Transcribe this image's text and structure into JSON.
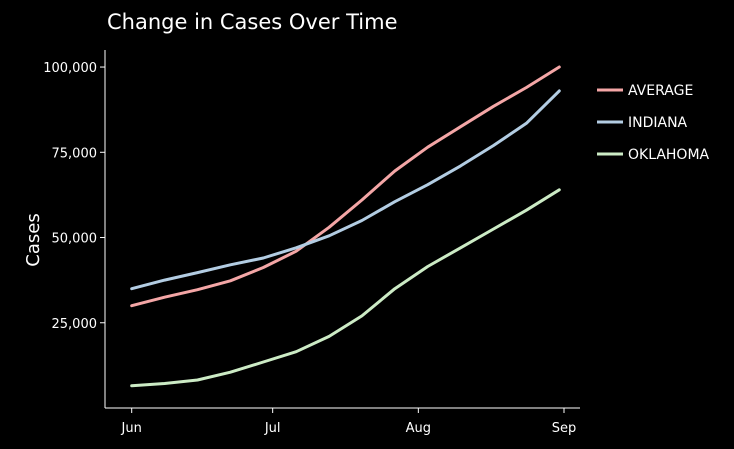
{
  "chart_data": {
    "type": "line",
    "title": "Change in Cases Over Time",
    "xlabel": "",
    "ylabel": "Cases",
    "x_axis": {
      "type": "date",
      "range": [
        "2020-05-31",
        "2020-09-01"
      ],
      "ticks": [
        {
          "date": "2020-06-01",
          "label": "Jun"
        },
        {
          "date": "2020-07-01",
          "label": "Jul"
        },
        {
          "date": "2020-08-01",
          "label": "Aug"
        },
        {
          "date": "2020-09-01",
          "label": "Sep"
        }
      ]
    },
    "y_axis": {
      "range": [
        0,
        105000
      ],
      "ticks": [
        {
          "value": 25000,
          "label": "25,000"
        },
        {
          "value": 50000,
          "label": "50,000"
        },
        {
          "value": 75000,
          "label": "75,000"
        },
        {
          "value": 100000,
          "label": "100,000"
        }
      ]
    },
    "grid": false,
    "legend": "top-right",
    "series": [
      {
        "name": "AVERAGE",
        "color": "#f4a6a6",
        "points": [
          [
            "2020-06-01",
            30000
          ],
          [
            "2020-06-08",
            32500
          ],
          [
            "2020-06-15",
            34700
          ],
          [
            "2020-06-22",
            37300
          ],
          [
            "2020-06-29",
            41200
          ],
          [
            "2020-07-06",
            46000
          ],
          [
            "2020-07-13",
            53000
          ],
          [
            "2020-07-20",
            61000
          ],
          [
            "2020-07-27",
            69500
          ],
          [
            "2020-08-03",
            76500
          ],
          [
            "2020-08-10",
            82500
          ],
          [
            "2020-08-17",
            88500
          ],
          [
            "2020-08-24",
            94000
          ],
          [
            "2020-08-31",
            100000
          ]
        ]
      },
      {
        "name": "INDIANA",
        "color": "#b3cde3",
        "points": [
          [
            "2020-06-01",
            35000
          ],
          [
            "2020-06-08",
            37500
          ],
          [
            "2020-06-15",
            39700
          ],
          [
            "2020-06-22",
            42000
          ],
          [
            "2020-06-29",
            44000
          ],
          [
            "2020-07-06",
            47000
          ],
          [
            "2020-07-13",
            50500
          ],
          [
            "2020-07-20",
            55000
          ],
          [
            "2020-07-27",
            60500
          ],
          [
            "2020-08-03",
            65500
          ],
          [
            "2020-08-10",
            71000
          ],
          [
            "2020-08-17",
            77000
          ],
          [
            "2020-08-24",
            83500
          ],
          [
            "2020-08-31",
            93000
          ]
        ]
      },
      {
        "name": "OKLAHOMA",
        "color": "#ccebc5",
        "points": [
          [
            "2020-06-01",
            6500
          ],
          [
            "2020-06-08",
            7200
          ],
          [
            "2020-06-15",
            8200
          ],
          [
            "2020-06-22",
            10500
          ],
          [
            "2020-06-29",
            13500
          ],
          [
            "2020-07-06",
            16500
          ],
          [
            "2020-07-13",
            21000
          ],
          [
            "2020-07-20",
            27000
          ],
          [
            "2020-07-27",
            35000
          ],
          [
            "2020-08-03",
            41500
          ],
          [
            "2020-08-10",
            47000
          ],
          [
            "2020-08-17",
            52500
          ],
          [
            "2020-08-24",
            58000
          ],
          [
            "2020-08-31",
            64000
          ]
        ]
      }
    ]
  }
}
